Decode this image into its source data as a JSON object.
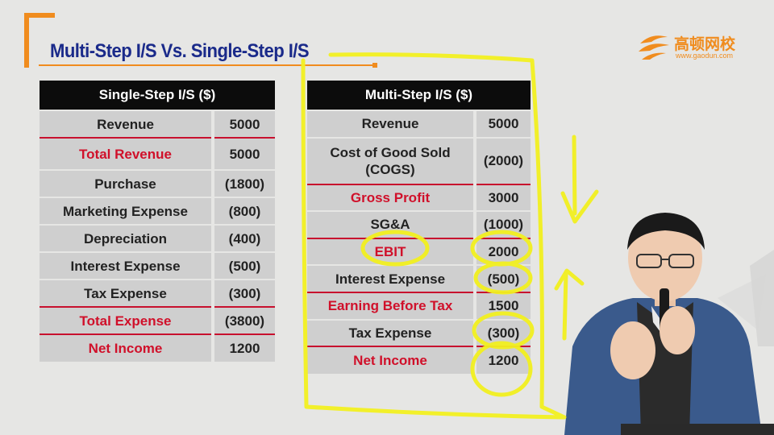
{
  "slide": {
    "title": "Multi-Step I/S Vs. Single-Step I/S"
  },
  "logo": {
    "name_cn": "高顿网校",
    "url": "www.gaodun.com"
  },
  "colors": {
    "title_blue": "#1a2a8a",
    "accent_orange": "#f08c1e",
    "highlight_red": "#d0102a",
    "annotation_yellow": "#f2f020"
  },
  "single_step": {
    "header": "Single-Step I/S  ($)",
    "rows": [
      {
        "label": "Revenue",
        "value": "5000"
      },
      {
        "label": "Total Revenue",
        "value": "5000"
      },
      {
        "label": "Purchase",
        "value": "(1800)"
      },
      {
        "label": "Marketing Expense",
        "value": "(800)"
      },
      {
        "label": "Depreciation",
        "value": "(400)"
      },
      {
        "label": "Interest Expense",
        "value": "(500)"
      },
      {
        "label": "Tax Expense",
        "value": "(300)"
      },
      {
        "label": "Total  Expense",
        "value": "(3800)"
      },
      {
        "label": "Net Income",
        "value": "1200"
      }
    ]
  },
  "multi_step": {
    "header": "Multi-Step I/S  ($)",
    "rows": [
      {
        "label": "Revenue",
        "value": "5000"
      },
      {
        "label": "Cost of Good Sold (COGS)",
        "value": "(2000)"
      },
      {
        "label": "Gross Profit",
        "value": "3000"
      },
      {
        "label": "SG&A",
        "value": "(1000)"
      },
      {
        "label": "EBIT",
        "value": "2000"
      },
      {
        "label": "Interest Expense",
        "value": "(500)"
      },
      {
        "label": "Earning Before Tax",
        "value": "1500"
      },
      {
        "label": "Tax Expense",
        "value": "(300)"
      },
      {
        "label": "Net Income",
        "value": "1200"
      }
    ]
  }
}
